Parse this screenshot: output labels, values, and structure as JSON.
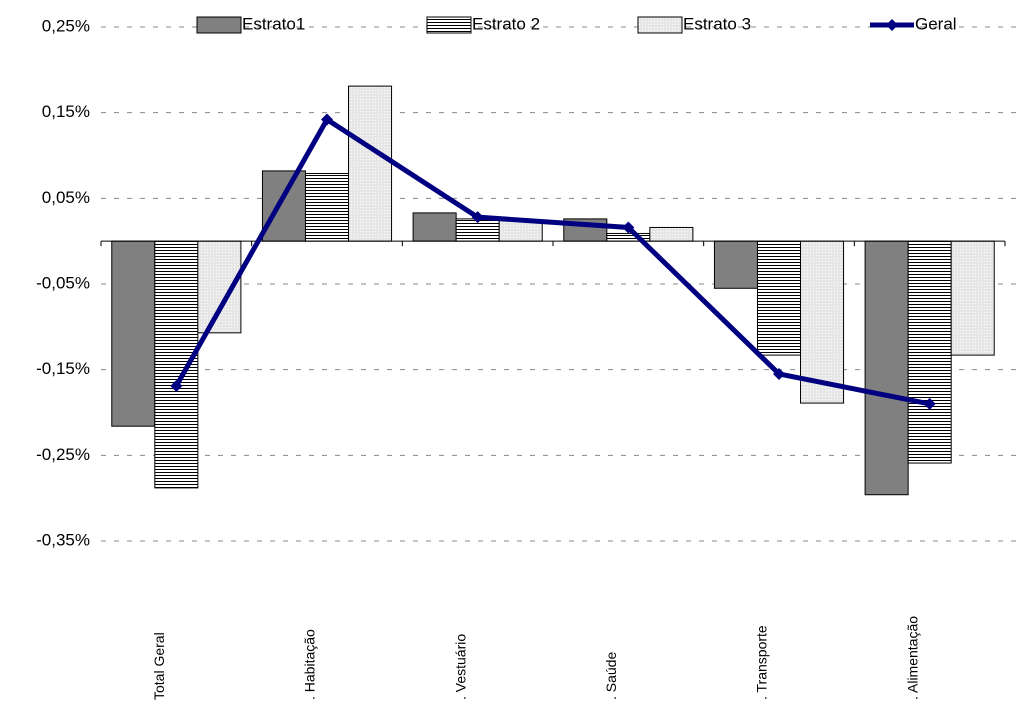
{
  "chart_data": {
    "type": "bar-line",
    "categories": [
      "Total Geral",
      ". Habitação",
      ". Vestuário",
      ". Saúde",
      ". Transporte",
      ". Alimentação"
    ],
    "series": [
      {
        "name": "Estrato1",
        "type": "bar",
        "color": "#808080",
        "values": [
          -0.216,
          0.082,
          0.033,
          0.026,
          -0.055,
          -0.296
        ]
      },
      {
        "name": "Estrato 2",
        "type": "bar",
        "color": "#000000",
        "values": [
          -0.288,
          0.079,
          0.026,
          0.009,
          -0.133,
          -0.259
        ]
      },
      {
        "name": "Estrato 3",
        "type": "bar",
        "color": "#e6e6e6",
        "values": [
          -0.107,
          0.181,
          0.025,
          0.016,
          -0.189,
          -0.133
        ]
      },
      {
        "name": "Geral",
        "type": "line",
        "color": "#000080",
        "values": [
          -0.169,
          0.142,
          0.028,
          0.016,
          -0.155,
          -0.19
        ]
      }
    ],
    "ylim": [
      -0.35,
      0.25
    ],
    "yticks": [
      {
        "value": 0.25,
        "label": "0,25%"
      },
      {
        "value": 0.15,
        "label": "0,15%"
      },
      {
        "value": 0.05,
        "label": "0,05%"
      },
      {
        "value": -0.05,
        "label": "-0,05%"
      },
      {
        "value": -0.15,
        "label": "-0,15%"
      },
      {
        "value": -0.25,
        "label": "-0,25%"
      },
      {
        "value": -0.35,
        "label": "-0,35%"
      }
    ],
    "grid": true
  }
}
